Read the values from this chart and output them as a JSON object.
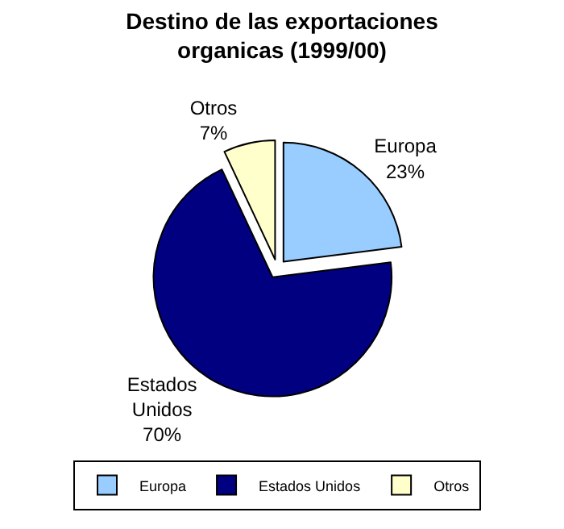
{
  "chart_data": {
    "type": "pie",
    "title": "Destino de las exportaciones organicas (1999/00)",
    "categories": [
      "Europa",
      "Estados Unidos",
      "Otros"
    ],
    "values": [
      23,
      70,
      7
    ],
    "value_labels": [
      "23%",
      "70%",
      "7%"
    ],
    "colors": [
      "#99ccff",
      "#000080",
      "#ffffcc"
    ],
    "legend": "bottom"
  }
}
